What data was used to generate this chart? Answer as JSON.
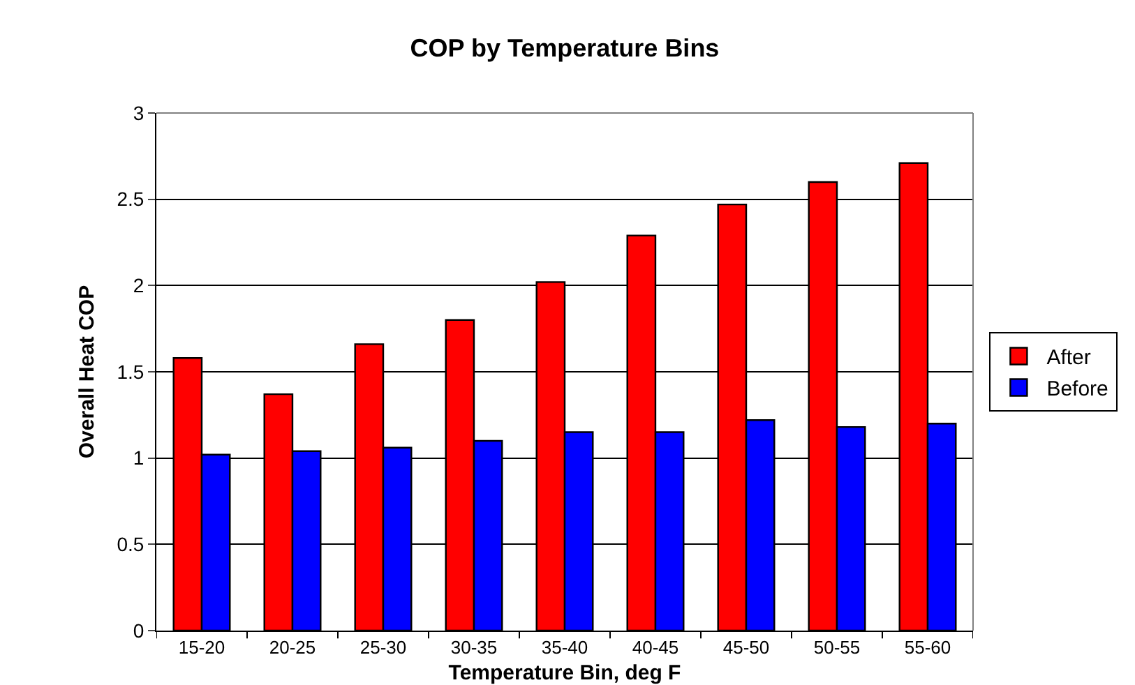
{
  "chart_data": {
    "type": "bar",
    "title": "COP by Temperature Bins",
    "xlabel": "Temperature Bin, deg F",
    "ylabel": "Overall Heat COP",
    "categories": [
      "15-20",
      "20-25",
      "25-30",
      "30-35",
      "35-40",
      "40-45",
      "45-50",
      "50-55",
      "55-60"
    ],
    "series": [
      {
        "name": "After",
        "color": "#ff0000",
        "values": [
          1.58,
          1.37,
          1.66,
          1.8,
          2.02,
          2.29,
          2.47,
          2.6,
          2.71
        ]
      },
      {
        "name": "Before",
        "color": "#0000ff",
        "values": [
          1.02,
          1.04,
          1.06,
          1.1,
          1.15,
          1.15,
          1.22,
          1.18,
          1.2
        ]
      }
    ],
    "ylim": [
      0,
      3
    ],
    "yticks": [
      0,
      0.5,
      1,
      1.5,
      2,
      2.5,
      3
    ],
    "grid": "y",
    "legend": "right"
  }
}
